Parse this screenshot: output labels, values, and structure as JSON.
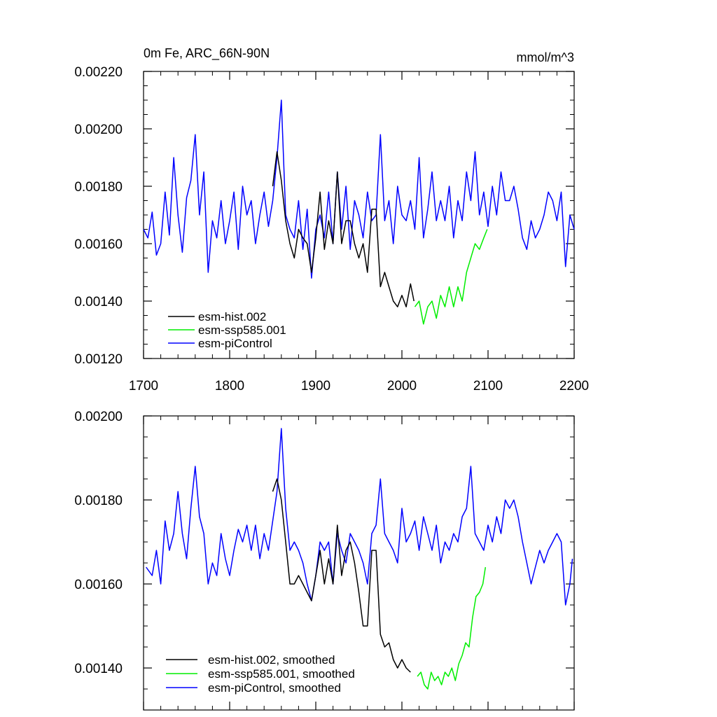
{
  "chart_data": [
    {
      "type": "line",
      "title": "0m Fe, ARC_66N-90N",
      "units": "mmol/m^3",
      "xlim": [
        1700,
        2200
      ],
      "ylim": [
        0.0012,
        0.0022
      ],
      "x_ticks": [
        1700,
        1800,
        1900,
        2000,
        2100,
        2200
      ],
      "x_tick_labels": [
        "1700",
        "1800",
        "1900",
        "2000",
        "2100",
        "2200"
      ],
      "y_ticks": [
        0.0012,
        0.0014,
        0.0016,
        0.0018,
        0.002,
        0.0022
      ],
      "y_tick_labels": [
        "0.00120",
        "0.00140",
        "0.00160",
        "0.00180",
        "0.00200",
        "0.00220"
      ],
      "legend": [
        {
          "label": "esm-hist.002",
          "color": "#000000"
        },
        {
          "label": "esm-ssp585.001",
          "color": "#00ee00"
        },
        {
          "label": "esm-piControl",
          "color": "#0000ff"
        }
      ],
      "series": [
        {
          "name": "esm-piControl",
          "color": "#0000ff",
          "x": [
            1700,
            1705,
            1710,
            1715,
            1720,
            1725,
            1730,
            1735,
            1740,
            1745,
            1750,
            1755,
            1760,
            1765,
            1770,
            1775,
            1780,
            1785,
            1790,
            1795,
            1800,
            1805,
            1810,
            1815,
            1820,
            1825,
            1830,
            1835,
            1840,
            1845,
            1850,
            1855,
            1860,
            1865,
            1870,
            1875,
            1880,
            1885,
            1890,
            1895,
            1900,
            1905,
            1910,
            1915,
            1920,
            1925,
            1930,
            1935,
            1940,
            1945,
            1950,
            1955,
            1960,
            1965,
            1970,
            1975,
            1980,
            1985,
            1990,
            1995,
            2000,
            2005,
            2010,
            2015,
            2020,
            2025,
            2030,
            2035,
            2040,
            2045,
            2050,
            2055,
            2060,
            2065,
            2070,
            2075,
            2080,
            2085,
            2090,
            2095,
            2100,
            2105,
            2110,
            2115,
            2120,
            2125,
            2130,
            2135,
            2140,
            2145,
            2150,
            2155,
            2160,
            2165,
            2170,
            2175,
            2180,
            2185,
            2190,
            2195,
            2200
          ],
          "y": [
            0.00165,
            0.00162,
            0.00171,
            0.00156,
            0.0016,
            0.00178,
            0.00163,
            0.0019,
            0.0017,
            0.00157,
            0.00176,
            0.00182,
            0.00198,
            0.0017,
            0.00185,
            0.0015,
            0.00168,
            0.00162,
            0.00175,
            0.0016,
            0.00168,
            0.00178,
            0.00158,
            0.0018,
            0.0017,
            0.00175,
            0.0016,
            0.0017,
            0.00178,
            0.00166,
            0.00175,
            0.0019,
            0.0021,
            0.0017,
            0.00165,
            0.00162,
            0.00175,
            0.00158,
            0.00172,
            0.00148,
            0.00165,
            0.0017,
            0.00162,
            0.00178,
            0.0016,
            0.00185,
            0.00165,
            0.0018,
            0.00158,
            0.00175,
            0.0017,
            0.00162,
            0.00178,
            0.00168,
            0.0017,
            0.00198,
            0.00168,
            0.00175,
            0.0016,
            0.0018,
            0.0017,
            0.00168,
            0.00175,
            0.00165,
            0.0019,
            0.00162,
            0.00172,
            0.00185,
            0.00168,
            0.00175,
            0.00168,
            0.0018,
            0.00162,
            0.00175,
            0.00168,
            0.00185,
            0.00175,
            0.00192,
            0.0017,
            0.00178,
            0.00166,
            0.0018,
            0.0017,
            0.00185,
            0.00175,
            0.00175,
            0.0018,
            0.00172,
            0.00162,
            0.00158,
            0.00168,
            0.00162,
            0.00165,
            0.0017,
            0.00178,
            0.00175,
            0.00168,
            0.00178,
            0.00152,
            0.0017,
            0.00165
          ]
        },
        {
          "name": "esm-hist.002",
          "color": "#000000",
          "x": [
            1850,
            1855,
            1860,
            1865,
            1870,
            1875,
            1880,
            1885,
            1890,
            1895,
            1900,
            1905,
            1910,
            1915,
            1920,
            1925,
            1930,
            1935,
            1940,
            1945,
            1950,
            1955,
            1960,
            1965,
            1970,
            1975,
            1980,
            1985,
            1990,
            1995,
            2000,
            2005,
            2010,
            2014
          ],
          "y": [
            0.0018,
            0.00192,
            0.00182,
            0.00168,
            0.0016,
            0.00155,
            0.00165,
            0.00162,
            0.0016,
            0.0015,
            0.00162,
            0.00178,
            0.00158,
            0.00168,
            0.0016,
            0.00185,
            0.0016,
            0.00168,
            0.00168,
            0.0016,
            0.00155,
            0.0016,
            0.0015,
            0.00172,
            0.00172,
            0.00145,
            0.0015,
            0.00145,
            0.0014,
            0.00138,
            0.00142,
            0.00138,
            0.00146,
            0.0014
          ]
        },
        {
          "name": "esm-ssp585.001",
          "color": "#00ee00",
          "x": [
            2015,
            2020,
            2025,
            2030,
            2035,
            2040,
            2045,
            2050,
            2055,
            2060,
            2065,
            2070,
            2075,
            2080,
            2085,
            2090,
            2095,
            2099
          ],
          "y": [
            0.00138,
            0.0014,
            0.00132,
            0.00138,
            0.0014,
            0.00134,
            0.00142,
            0.00138,
            0.00145,
            0.00138,
            0.00145,
            0.0014,
            0.0015,
            0.00155,
            0.0016,
            0.00158,
            0.00162,
            0.00165
          ]
        }
      ]
    },
    {
      "type": "line",
      "title": "",
      "xlim": [
        1700,
        2200
      ],
      "ylim": [
        0.0013,
        0.002
      ],
      "x_ticks": [
        1700,
        1800,
        1900,
        2000,
        2100,
        2200
      ],
      "y_ticks": [
        0.0014,
        0.0016,
        0.0018,
        0.002
      ],
      "y_tick_labels": [
        "0.00140",
        "0.00160",
        "0.00180",
        "0.00200"
      ],
      "legend": [
        {
          "label": "esm-hist.002, smoothed",
          "color": "#000000"
        },
        {
          "label": "esm-ssp585.001, smoothed",
          "color": "#00ee00"
        },
        {
          "label": "esm-piControl, smoothed",
          "color": "#0000ff"
        }
      ],
      "series": [
        {
          "name": "esm-piControl, smoothed",
          "color": "#0000ff",
          "x": [
            1703,
            1710,
            1715,
            1720,
            1725,
            1730,
            1735,
            1740,
            1745,
            1750,
            1755,
            1760,
            1765,
            1770,
            1775,
            1780,
            1785,
            1790,
            1795,
            1800,
            1805,
            1810,
            1815,
            1820,
            1825,
            1830,
            1835,
            1840,
            1845,
            1850,
            1855,
            1860,
            1865,
            1870,
            1875,
            1880,
            1885,
            1890,
            1895,
            1900,
            1905,
            1910,
            1915,
            1920,
            1925,
            1930,
            1935,
            1940,
            1945,
            1950,
            1955,
            1960,
            1965,
            1970,
            1975,
            1980,
            1985,
            1990,
            1995,
            2000,
            2005,
            2010,
            2015,
            2020,
            2025,
            2030,
            2035,
            2040,
            2045,
            2050,
            2055,
            2060,
            2065,
            2070,
            2075,
            2080,
            2085,
            2090,
            2095,
            2100,
            2105,
            2110,
            2115,
            2120,
            2125,
            2130,
            2135,
            2140,
            2145,
            2150,
            2155,
            2160,
            2165,
            2170,
            2175,
            2180,
            2185,
            2190,
            2195,
            2198
          ],
          "y": [
            0.00164,
            0.00162,
            0.00168,
            0.0016,
            0.00175,
            0.00168,
            0.00172,
            0.00182,
            0.00172,
            0.00166,
            0.00178,
            0.00188,
            0.00176,
            0.00172,
            0.0016,
            0.00165,
            0.00162,
            0.00172,
            0.00166,
            0.00162,
            0.00168,
            0.00173,
            0.0017,
            0.00174,
            0.00168,
            0.00174,
            0.00166,
            0.00172,
            0.00168,
            0.00175,
            0.00182,
            0.00197,
            0.00178,
            0.00168,
            0.0017,
            0.00168,
            0.00165,
            0.0016,
            0.00156,
            0.00162,
            0.0017,
            0.00168,
            0.0017,
            0.0016,
            0.00172,
            0.00168,
            0.00165,
            0.00172,
            0.0017,
            0.00168,
            0.00165,
            0.0016,
            0.00172,
            0.00174,
            0.00185,
            0.00172,
            0.0017,
            0.00168,
            0.00165,
            0.00178,
            0.0017,
            0.00172,
            0.00175,
            0.00168,
            0.00176,
            0.00172,
            0.00168,
            0.00174,
            0.00165,
            0.0017,
            0.00168,
            0.00172,
            0.0017,
            0.00176,
            0.00178,
            0.00188,
            0.00172,
            0.0017,
            0.00168,
            0.00174,
            0.0017,
            0.00176,
            0.00172,
            0.0018,
            0.00178,
            0.0018,
            0.00176,
            0.0017,
            0.00165,
            0.0016,
            0.00164,
            0.00168,
            0.00165,
            0.00168,
            0.0017,
            0.00172,
            0.0017,
            0.00155,
            0.0016,
            0.00166
          ]
        },
        {
          "name": "esm-hist.002, smoothed",
          "color": "#000000",
          "x": [
            1850,
            1855,
            1860,
            1865,
            1870,
            1875,
            1880,
            1885,
            1890,
            1895,
            1900,
            1905,
            1910,
            1915,
            1920,
            1925,
            1930,
            1935,
            1940,
            1945,
            1950,
            1955,
            1960,
            1965,
            1970,
            1975,
            1980,
            1985,
            1990,
            1995,
            2000,
            2005,
            2010
          ],
          "y": [
            0.00182,
            0.00185,
            0.0018,
            0.0017,
            0.0016,
            0.0016,
            0.00162,
            0.0016,
            0.00158,
            0.00156,
            0.00162,
            0.00168,
            0.0016,
            0.00166,
            0.0016,
            0.00174,
            0.00162,
            0.00168,
            0.0017,
            0.00165,
            0.00158,
            0.0015,
            0.0015,
            0.00168,
            0.00168,
            0.00148,
            0.00145,
            0.00146,
            0.00142,
            0.0014,
            0.00142,
            0.0014,
            0.00139
          ]
        },
        {
          "name": "esm-ssp585.001, smoothed",
          "color": "#00ee00",
          "x": [
            2018,
            2022,
            2026,
            2030,
            2034,
            2038,
            2042,
            2046,
            2050,
            2054,
            2058,
            2062,
            2066,
            2070,
            2074,
            2078,
            2082,
            2086,
            2090,
            2094,
            2097
          ],
          "y": [
            0.00138,
            0.00139,
            0.00136,
            0.00135,
            0.00139,
            0.00137,
            0.00138,
            0.00136,
            0.00139,
            0.00138,
            0.0014,
            0.00137,
            0.00141,
            0.00143,
            0.00146,
            0.00145,
            0.00152,
            0.00157,
            0.00158,
            0.0016,
            0.00164
          ]
        }
      ]
    }
  ]
}
